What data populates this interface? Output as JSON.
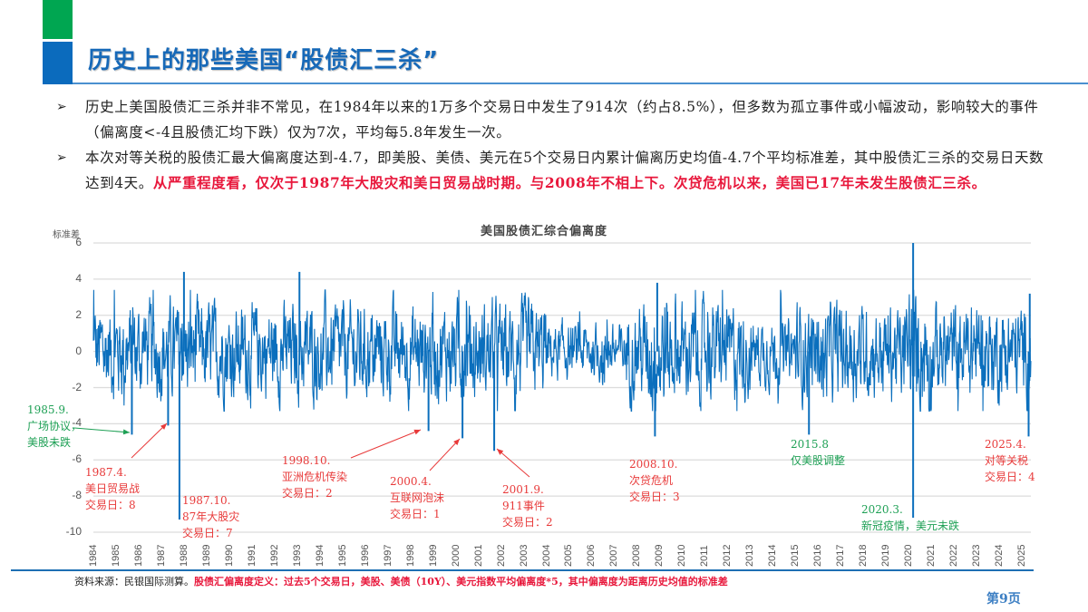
{
  "slide": {
    "title": "历史上的那些美国“股债汇三杀”",
    "page_number": "第9页",
    "colors": {
      "accent_blue": "#1769b8",
      "accent_green": "#00a651",
      "highlight_red": "#e8183c",
      "series_blue": "#0b6fbd"
    }
  },
  "bullets": [
    {
      "text": "历史上美国股债汇三杀并非不常见，在1984年以来的1万多个交易日中发生了914次（约占8.5%），但多数为孤立事件或小幅波动，影响较大的事件（偏离度<-4且股债汇均下跌）仅为7次，平均每5.8年发生一次。",
      "highlight": ""
    },
    {
      "text": "本次对等关税的股债汇最大偏离度达到-4.7，即美股、美债、美元在5个交易日内累计偏离历史均值-4.7个平均标准差，其中股债汇三杀的交易日天数达到4天。",
      "highlight": "从严重程度看，仅次于1987年大股灾和美日贸易战时期。与2008年不相上下。次贷危机以来，美国已17年未发生股债汇三杀。"
    }
  ],
  "chart_data": {
    "type": "line",
    "title": "美国股债汇综合偏离度",
    "ylabel": "标准差",
    "xlabel": "",
    "ylim": [
      -10,
      6
    ],
    "yticks": [
      6,
      4,
      2,
      0,
      -2,
      -4,
      -6,
      -8,
      -10
    ],
    "ytick_labels": [
      "6",
      "4",
      "2",
      "0",
      "-2",
      "-4",
      "-6",
      "-8",
      "-10"
    ],
    "xlim": [
      1984,
      2025.4
    ],
    "xticks": [
      "1984",
      "1985",
      "1986",
      "1987",
      "1988",
      "1989",
      "1990",
      "1991",
      "1992",
      "1993",
      "1994",
      "1995",
      "1996",
      "1997",
      "1998",
      "1999",
      "2000",
      "2001",
      "2002",
      "2003",
      "2004",
      "2005",
      "2006",
      "2007",
      "2008",
      "2009",
      "2010",
      "2011",
      "2012",
      "2013",
      "2014",
      "2015",
      "2016",
      "2017",
      "2018",
      "2019",
      "2020",
      "2021",
      "2022",
      "2023",
      "2024",
      "2025"
    ],
    "grid": true,
    "legend": null,
    "series": [
      {
        "name": "美国股债汇综合偏离度",
        "color": "#0b6fbd"
      }
    ],
    "notable_points": [
      {
        "x": 1985.7,
        "y": -4.6
      },
      {
        "x": 1987.3,
        "y": -4.1
      },
      {
        "x": 1987.8,
        "y": -9.3
      },
      {
        "x": 1988.0,
        "y": 4.4
      },
      {
        "x": 1993.1,
        "y": 4.4
      },
      {
        "x": 1998.8,
        "y": -4.4
      },
      {
        "x": 2000.3,
        "y": -4.8
      },
      {
        "x": 2001.7,
        "y": -5.5
      },
      {
        "x": 2008.8,
        "y": -4.7
      },
      {
        "x": 2008.9,
        "y": 3.8
      },
      {
        "x": 2015.6,
        "y": -4.6
      },
      {
        "x": 2020.2,
        "y": -9.2
      },
      {
        "x": 2020.2,
        "y": 6.0
      },
      {
        "x": 2025.3,
        "y": -4.7
      },
      {
        "x": 2025.35,
        "y": 3.2
      }
    ],
    "annotations": [
      {
        "text": "1985.9.\n广场协议，\n美股未跌",
        "color": "green"
      },
      {
        "text": "1987.4.\n美日贸易战\n交易日：8",
        "color": "red"
      },
      {
        "text": "1987.10.\n87年大股灾\n交易日：7",
        "color": "red"
      },
      {
        "text": "1998.10.\n亚洲危机传染\n交易日：2",
        "color": "red"
      },
      {
        "text": "2000.4.\n互联网泡沫\n交易日：1",
        "color": "red"
      },
      {
        "text": "2001.9.\n911事件\n交易日：2",
        "color": "red"
      },
      {
        "text": "2008.10.\n次贷危机\n交易日：3",
        "color": "red"
      },
      {
        "text": "2015.8\n仅美股调整",
        "color": "green"
      },
      {
        "text": "2020.3.\n新冠疫情，美元未跌",
        "color": "green"
      },
      {
        "text": "2025.4.\n对等关税\n交易日：4",
        "color": "red"
      }
    ]
  },
  "footer": {
    "source": "资料来源：民银国际测算。",
    "definition": "股债汇偏离度定义：过去5个交易日，美股、美债（10Y）、美元指数平均偏离度*5，其中偏离度为距离历史均值的标准差"
  }
}
